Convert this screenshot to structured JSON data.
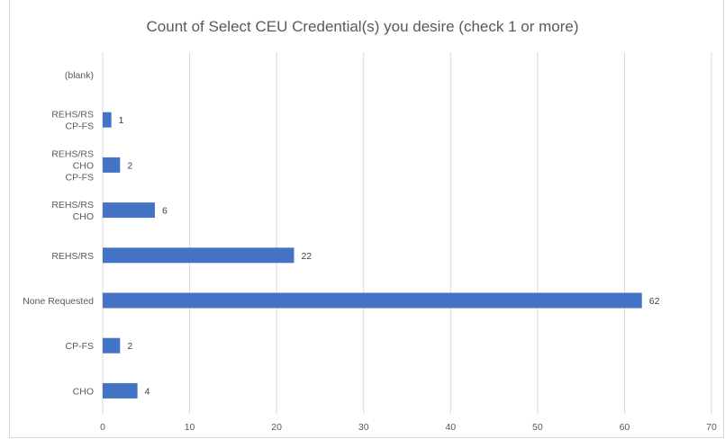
{
  "chart_data": {
    "type": "bar",
    "orientation": "horizontal",
    "title": "Count of Select CEU Credential(s) you desire (check 1 or more)",
    "categories": [
      [
        "(blank)"
      ],
      [
        "REHS/RS",
        "CP-FS"
      ],
      [
        "REHS/RS",
        "CHO",
        "CP-FS"
      ],
      [
        "REHS/RS",
        "CHO"
      ],
      [
        "REHS/RS"
      ],
      [
        "None Requested"
      ],
      [
        "CP-FS"
      ],
      [
        "CHO"
      ]
    ],
    "values": [
      null,
      1,
      2,
      6,
      22,
      62,
      2,
      4
    ],
    "data_labels": [
      "",
      "1",
      "2",
      "6",
      "22",
      "62",
      "2",
      "4"
    ],
    "xlim": [
      0,
      70
    ],
    "x_ticks": [
      0,
      10,
      20,
      30,
      40,
      50,
      60,
      70
    ],
    "grid": "vertical",
    "legend": "none",
    "bar_color": "#4472c4",
    "gridline_color": "#d9d9d9",
    "text_color": "#595959"
  }
}
